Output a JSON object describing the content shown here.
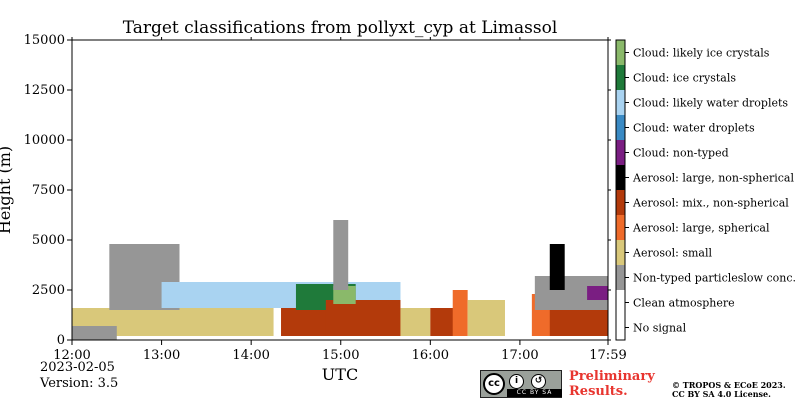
{
  "chart_data": {
    "type": "heatmap",
    "title": "Target classifications from pollyxt_cyp at Limassol",
    "xlabel": "UTC",
    "ylabel": "Height (m)",
    "x_range": [
      "12:00",
      "17:59"
    ],
    "ylim": [
      0,
      15000
    ],
    "x_ticks": [
      "12:00",
      "13:00",
      "14:00",
      "15:00",
      "16:00",
      "17:00",
      "17:59"
    ],
    "y_ticks": [
      0,
      2500,
      5000,
      7500,
      10000,
      12500,
      15000
    ],
    "grid": false,
    "categories": [
      {
        "label": "No signal",
        "color": "#ffffff"
      },
      {
        "label": "Clean atmosphere",
        "color": "#ffffff"
      },
      {
        "label": "Non-typed particleslow conc.",
        "color": "#969696"
      },
      {
        "label": "Aerosol: small",
        "color": "#d9c87a"
      },
      {
        "label": "Aerosol: large, spherical",
        "color": "#ef6b2a"
      },
      {
        "label": "Aerosol: mix., non-spherical",
        "color": "#b33a0b"
      },
      {
        "label": "Aerosol: large, non-spherical",
        "color": "#000000"
      },
      {
        "label": "Cloud: non-typed",
        "color": "#7a1e82"
      },
      {
        "label": "Cloud: water droplets",
        "color": "#3a8ac4"
      },
      {
        "label": "Cloud: likely water droplets",
        "color": "#a9d3f1"
      },
      {
        "label": "Cloud: ice crystals",
        "color": "#1f7a3a"
      },
      {
        "label": "Cloud: likely ice crystals",
        "color": "#8ab96a"
      }
    ],
    "layers": [
      {
        "class": "Aerosol: small",
        "start": "12:00",
        "end": "14:15",
        "bottom": 200,
        "top": 1600
      },
      {
        "class": "Non-typed particleslow conc.",
        "start": "12:00",
        "end": "12:30",
        "bottom": 0,
        "top": 700
      },
      {
        "class": "Non-typed particleslow conc.",
        "start": "12:25",
        "end": "13:12",
        "bottom": 1500,
        "top": 4800
      },
      {
        "class": "Cloud: likely water droplets",
        "start": "13:00",
        "end": "15:40",
        "bottom": 1600,
        "top": 2900
      },
      {
        "class": "Aerosol: mix., non-spherical",
        "start": "14:20",
        "end": "15:00",
        "bottom": 200,
        "top": 1600
      },
      {
        "class": "Cloud: ice crystals",
        "start": "14:30",
        "end": "15:10",
        "bottom": 1500,
        "top": 2800
      },
      {
        "class": "Aerosol: mix., non-spherical",
        "start": "14:50",
        "end": "15:40",
        "bottom": 200,
        "top": 2000
      },
      {
        "class": "Cloud: likely ice crystals",
        "start": "14:55",
        "end": "15:10",
        "bottom": 1800,
        "top": 2700
      },
      {
        "class": "Non-typed particleslow conc.",
        "start": "14:55",
        "end": "15:05",
        "bottom": 2500,
        "top": 6000
      },
      {
        "class": "Aerosol: small",
        "start": "15:40",
        "end": "16:00",
        "bottom": 200,
        "top": 1600
      },
      {
        "class": "Aerosol: mix., non-spherical",
        "start": "16:00",
        "end": "16:20",
        "bottom": 200,
        "top": 1600
      },
      {
        "class": "Aerosol: large, spherical",
        "start": "16:15",
        "end": "16:25",
        "bottom": 200,
        "top": 2500
      },
      {
        "class": "Aerosol: small",
        "start": "16:25",
        "end": "16:50",
        "bottom": 200,
        "top": 2000
      },
      {
        "class": "Aerosol: large, spherical",
        "start": "17:08",
        "end": "17:45",
        "bottom": 200,
        "top": 2300
      },
      {
        "class": "Aerosol: mix., non-spherical",
        "start": "17:20",
        "end": "17:59",
        "bottom": 200,
        "top": 1700
      },
      {
        "class": "Non-typed particleslow conc.",
        "start": "17:10",
        "end": "17:59",
        "bottom": 1500,
        "top": 3200
      },
      {
        "class": "Aerosol: large, non-spherical",
        "start": "17:20",
        "end": "17:30",
        "bottom": 2500,
        "top": 4800
      },
      {
        "class": "Cloud: non-typed",
        "start": "17:45",
        "end": "17:59",
        "bottom": 2000,
        "top": 2700
      }
    ],
    "colorbar": "right"
  },
  "footer": {
    "date": "2023-02-05",
    "version": "Version: 3.5",
    "license_badge": "CC BY SA",
    "preliminary_line1": "Preliminary",
    "preliminary_line2": "Results.",
    "copyright_line1": "© TROPOS & ECoE 2023.",
    "copyright_line2": "CC BY SA 4.0 License."
  }
}
